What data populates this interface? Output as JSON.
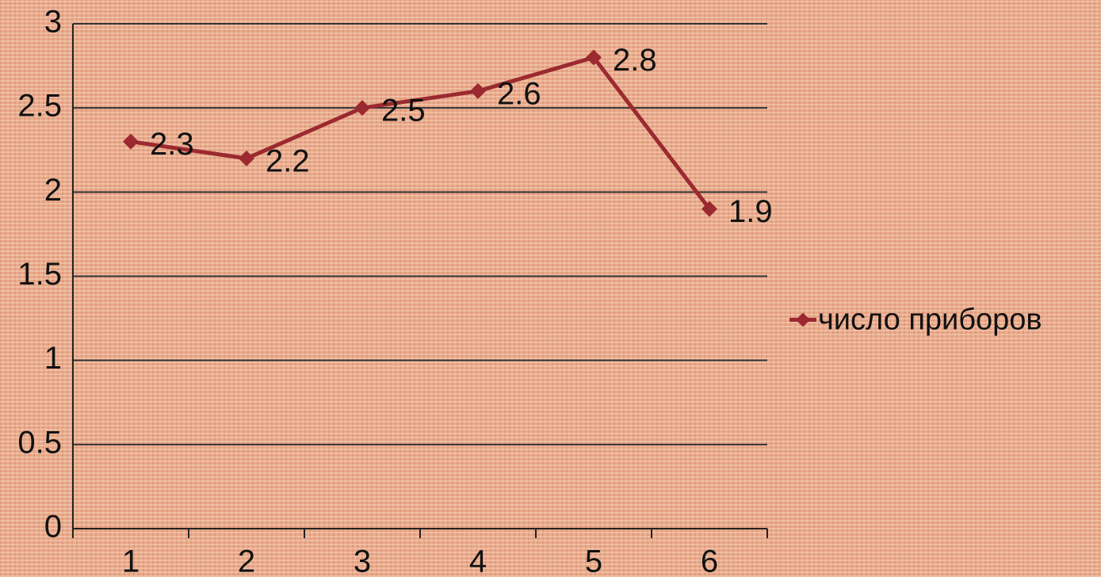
{
  "chart_data": {
    "type": "line",
    "categories": [
      "1",
      "2",
      "3",
      "4",
      "5",
      "6"
    ],
    "series": [
      {
        "name": "число приборов",
        "color": "#9b2a30",
        "values": [
          2.3,
          2.2,
          2.5,
          2.6,
          2.8,
          1.9
        ]
      }
    ],
    "ylim": [
      0,
      3
    ],
    "yticks": [
      0,
      0.5,
      1,
      1.5,
      2,
      2.5,
      3
    ],
    "grid": true,
    "legend": "right",
    "data_labels": true
  }
}
